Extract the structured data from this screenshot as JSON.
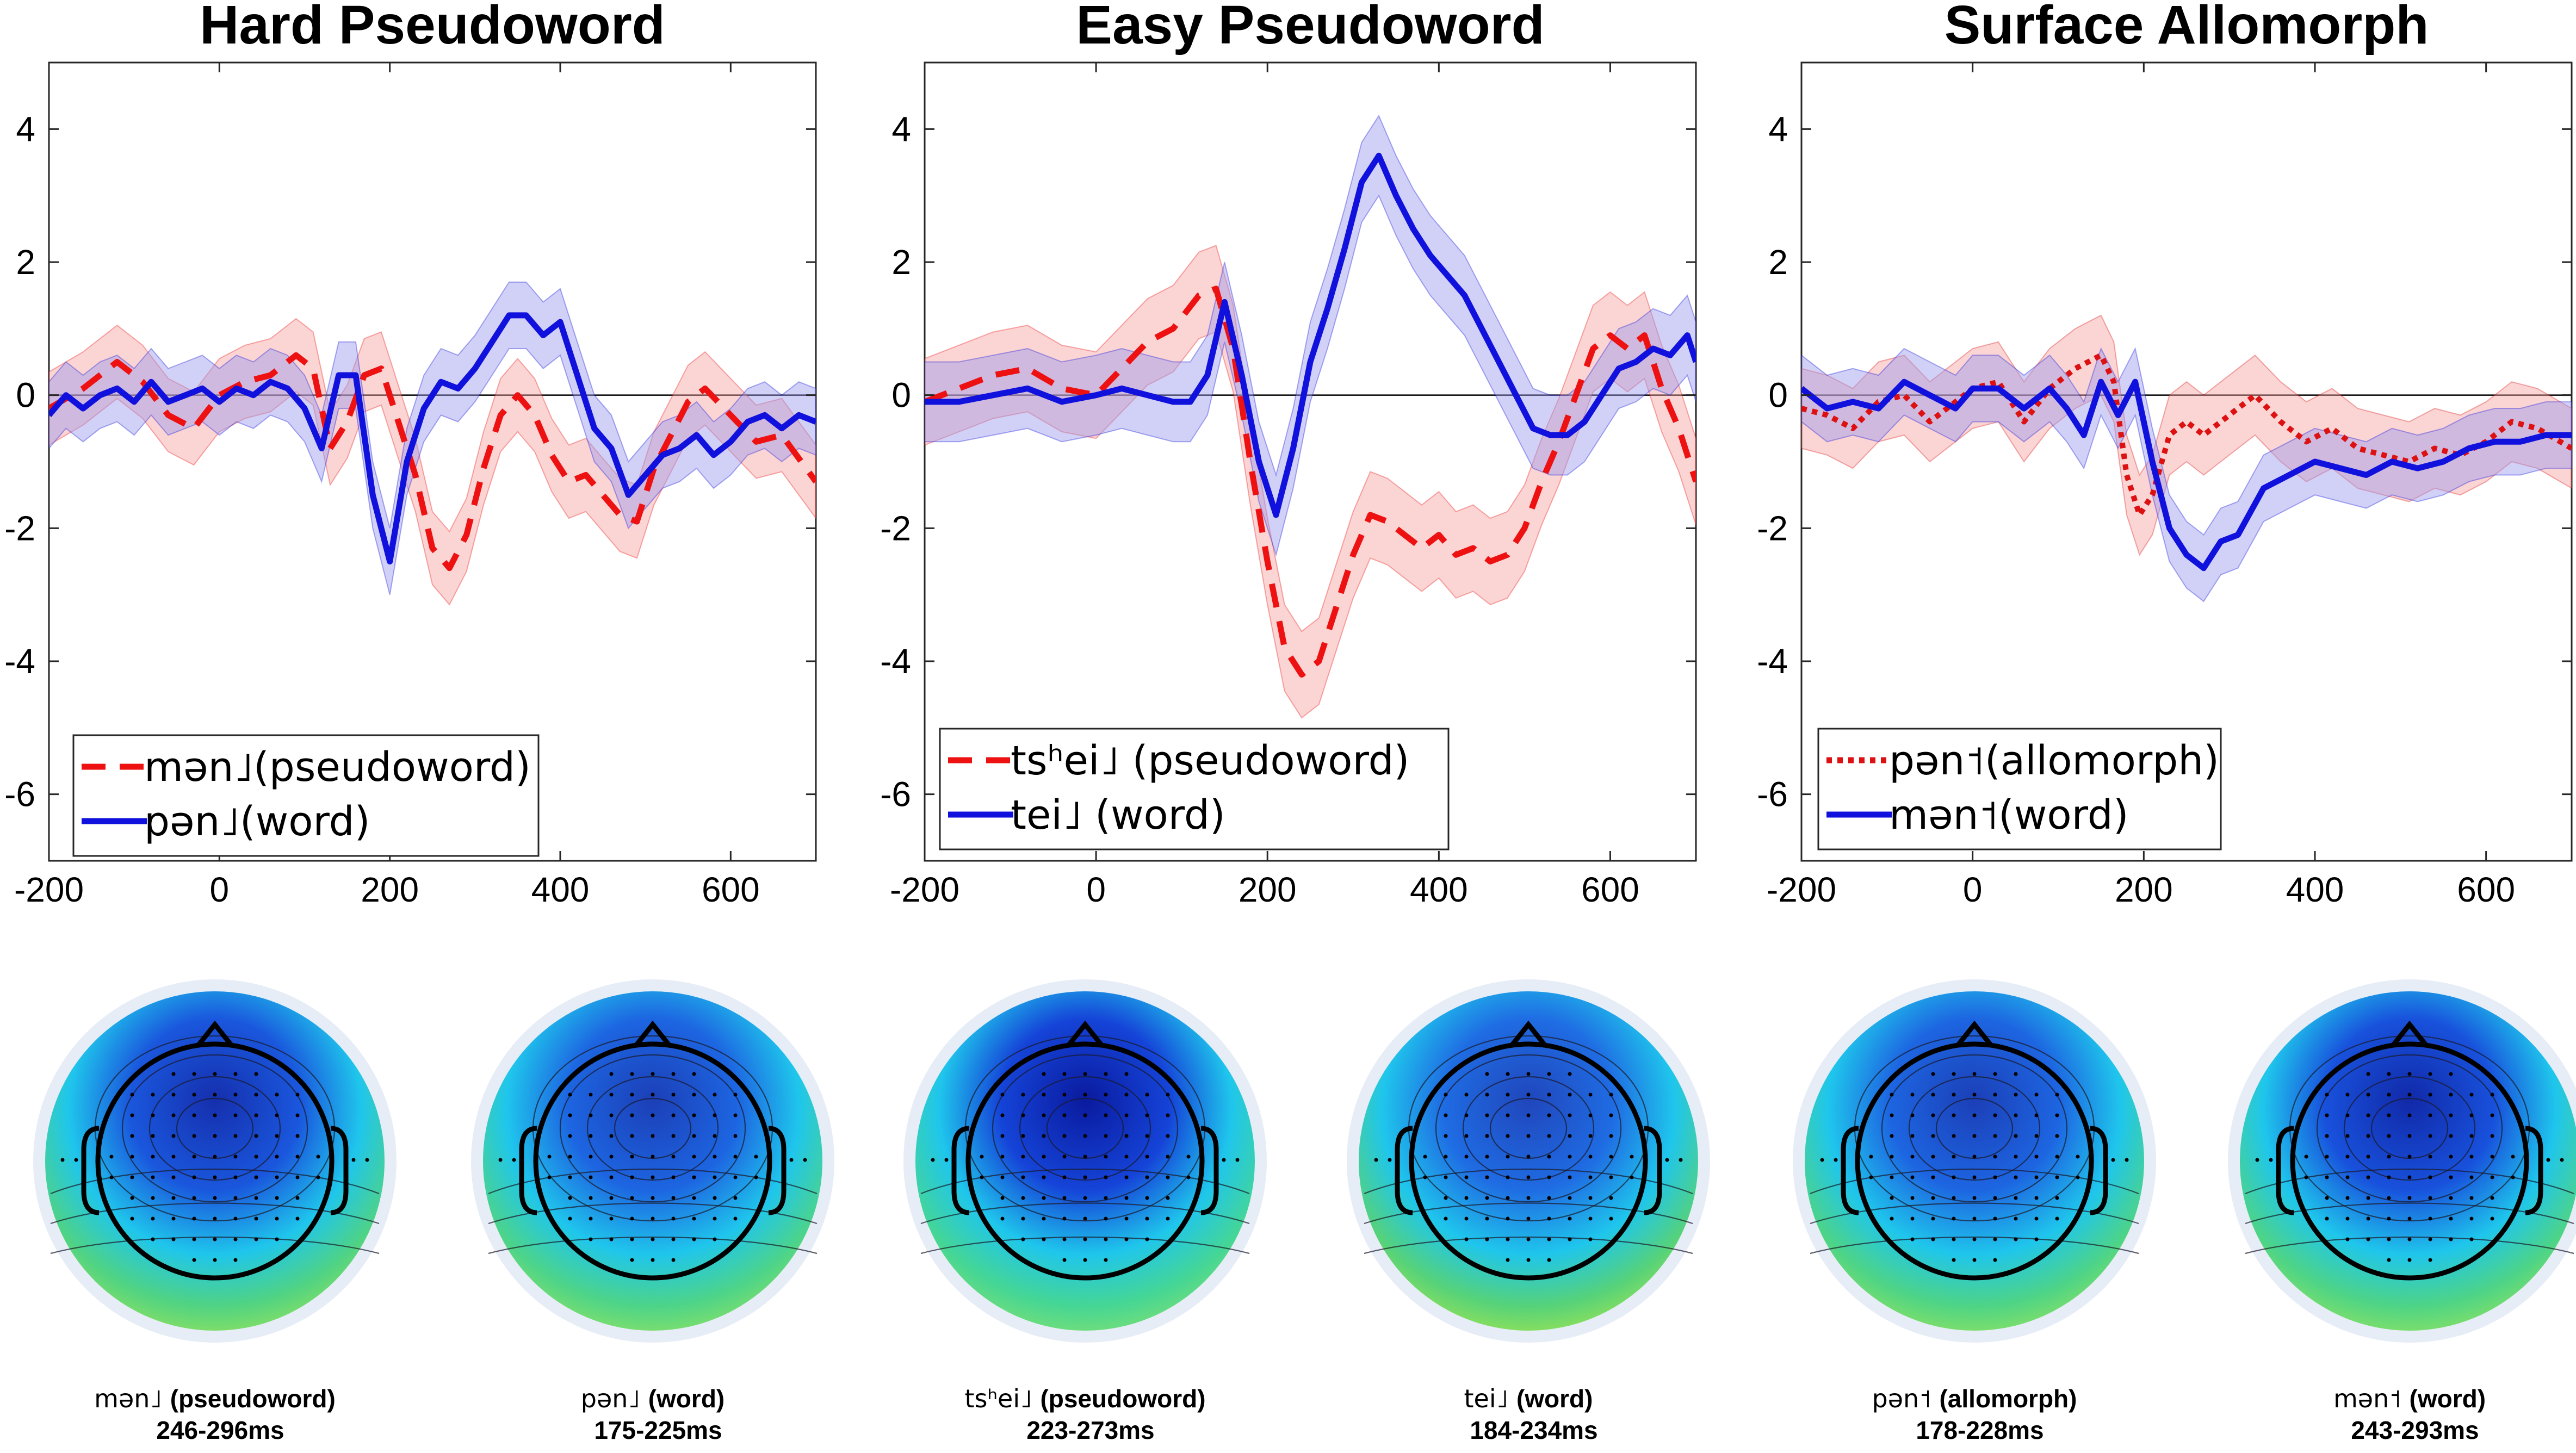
{
  "chart_data": [
    {
      "type": "line",
      "title": "Hard Pseudoword",
      "xlim": [
        -200,
        700
      ],
      "ylim": [
        -7,
        5
      ],
      "xticks": [
        -200,
        0,
        200,
        400,
        600
      ],
      "yticks": [
        -6,
        -4,
        -2,
        0,
        2,
        4
      ],
      "xtick_labels": [
        "-200",
        "0",
        "200",
        "400",
        "600"
      ],
      "ytick_labels": [
        "-6",
        "-4",
        "-2",
        "0",
        "2",
        "4"
      ],
      "legend_position": "bottom-left",
      "series": [
        {
          "name": "mən˩(pseudoword)",
          "color": "#ee1111",
          "style": "dashed",
          "band": 0.55,
          "x": [
            -200,
            -160,
            -120,
            -90,
            -60,
            -30,
            0,
            30,
            60,
            90,
            110,
            130,
            150,
            170,
            190,
            210,
            230,
            250,
            270,
            290,
            310,
            330,
            350,
            370,
            390,
            410,
            430,
            450,
            470,
            490,
            510,
            530,
            550,
            570,
            600,
            630,
            660,
            700
          ],
          "values": [
            -0.2,
            0.1,
            0.5,
            0.2,
            -0.3,
            -0.5,
            0.0,
            0.2,
            0.3,
            0.6,
            0.4,
            -0.8,
            -0.4,
            0.3,
            0.4,
            -0.4,
            -1.2,
            -2.3,
            -2.6,
            -2.1,
            -1.1,
            -0.3,
            0.0,
            -0.3,
            -0.9,
            -1.3,
            -1.2,
            -1.5,
            -1.8,
            -1.9,
            -1.1,
            -0.6,
            -0.1,
            0.1,
            -0.3,
            -0.7,
            -0.6,
            -1.3
          ]
        },
        {
          "name": "pən˩(word)",
          "color": "#1111dd",
          "style": "solid",
          "band": 0.5,
          "x": [
            -200,
            -180,
            -160,
            -140,
            -120,
            -100,
            -80,
            -60,
            -40,
            -20,
            0,
            20,
            40,
            60,
            80,
            100,
            120,
            140,
            160,
            180,
            200,
            220,
            240,
            260,
            280,
            300,
            320,
            340,
            360,
            380,
            400,
            420,
            440,
            460,
            480,
            500,
            520,
            540,
            560,
            580,
            600,
            620,
            640,
            660,
            680,
            700
          ],
          "values": [
            -0.3,
            0.0,
            -0.2,
            0.0,
            0.1,
            -0.1,
            0.2,
            -0.1,
            0.0,
            0.1,
            -0.1,
            0.1,
            0.0,
            0.2,
            0.1,
            -0.2,
            -0.8,
            0.3,
            0.3,
            -1.5,
            -2.5,
            -1.0,
            -0.2,
            0.2,
            0.1,
            0.4,
            0.8,
            1.2,
            1.2,
            0.9,
            1.1,
            0.3,
            -0.5,
            -0.8,
            -1.5,
            -1.2,
            -0.9,
            -0.8,
            -0.6,
            -0.9,
            -0.7,
            -0.4,
            -0.3,
            -0.5,
            -0.3,
            -0.4
          ]
        }
      ]
    },
    {
      "type": "line",
      "title": "Easy Pseudoword",
      "xlim": [
        -200,
        700
      ],
      "ylim": [
        -7,
        5
      ],
      "xticks": [
        -200,
        0,
        200,
        400,
        600
      ],
      "yticks": [
        -6,
        -4,
        -2,
        0,
        2,
        4
      ],
      "xtick_labels": [
        "-200",
        "0",
        "200",
        "400",
        "600"
      ],
      "ytick_labels": [
        "-6",
        "-4",
        "-2",
        "0",
        "2",
        "4"
      ],
      "legend_position": "bottom-left",
      "series": [
        {
          "name": "tsʰei˩ (pseudoword)",
          "color": "#ee1111",
          "style": "dashed",
          "band": 0.65,
          "x": [
            -200,
            -160,
            -120,
            -80,
            -40,
            0,
            30,
            60,
            90,
            120,
            140,
            160,
            180,
            200,
            220,
            240,
            260,
            280,
            300,
            320,
            340,
            360,
            380,
            400,
            420,
            440,
            460,
            480,
            500,
            520,
            540,
            560,
            580,
            600,
            620,
            640,
            660,
            680,
            700
          ],
          "values": [
            -0.1,
            0.1,
            0.3,
            0.4,
            0.1,
            0.0,
            0.4,
            0.8,
            1.0,
            1.5,
            1.6,
            0.7,
            -1.0,
            -2.5,
            -3.8,
            -4.2,
            -4.0,
            -3.2,
            -2.4,
            -1.8,
            -1.9,
            -2.1,
            -2.3,
            -2.1,
            -2.4,
            -2.3,
            -2.5,
            -2.4,
            -2.0,
            -1.3,
            -0.7,
            0.0,
            0.7,
            0.9,
            0.7,
            0.9,
            0.1,
            -0.5,
            -1.3
          ]
        },
        {
          "name": "tei˩      (word)",
          "color": "#1111dd",
          "style": "solid",
          "band": 0.6,
          "x": [
            -200,
            -160,
            -120,
            -80,
            -40,
            0,
            30,
            60,
            90,
            110,
            130,
            150,
            170,
            190,
            210,
            230,
            250,
            270,
            290,
            310,
            330,
            350,
            370,
            390,
            410,
            430,
            450,
            470,
            490,
            510,
            530,
            550,
            570,
            590,
            610,
            630,
            650,
            670,
            690,
            700
          ],
          "values": [
            -0.1,
            -0.1,
            0.0,
            0.1,
            -0.1,
            0.0,
            0.1,
            0.0,
            -0.1,
            -0.1,
            0.3,
            1.4,
            0.3,
            -1.0,
            -1.8,
            -0.8,
            0.5,
            1.3,
            2.2,
            3.2,
            3.6,
            3.0,
            2.5,
            2.1,
            1.8,
            1.5,
            1.0,
            0.5,
            0.0,
            -0.5,
            -0.6,
            -0.6,
            -0.4,
            0.0,
            0.4,
            0.5,
            0.7,
            0.6,
            0.9,
            0.5
          ]
        }
      ]
    },
    {
      "type": "line",
      "title": "Surface Allomorph",
      "xlim": [
        -200,
        700
      ],
      "ylim": [
        -7,
        5
      ],
      "xticks": [
        -200,
        0,
        200,
        400,
        600
      ],
      "yticks": [
        -6,
        -4,
        -2,
        0,
        2,
        4
      ],
      "xtick_labels": [
        "-200",
        "0",
        "200",
        "400",
        "600"
      ],
      "ytick_labels": [
        "-6",
        "-4",
        "-2",
        "0",
        "2",
        "4"
      ],
      "legend_position": "bottom-left",
      "series": [
        {
          "name": "pən˦(allomorph)",
          "color": "#dd1111",
          "style": "dotted",
          "band": 0.6,
          "x": [
            -200,
            -170,
            -140,
            -110,
            -80,
            -50,
            -20,
            0,
            30,
            60,
            90,
            120,
            150,
            165,
            180,
            195,
            210,
            230,
            250,
            270,
            290,
            310,
            330,
            360,
            390,
            420,
            450,
            480,
            510,
            540,
            570,
            600,
            630,
            660,
            700
          ],
          "values": [
            -0.2,
            -0.3,
            -0.5,
            -0.1,
            0.0,
            -0.4,
            -0.1,
            0.1,
            0.2,
            -0.4,
            0.1,
            0.4,
            0.6,
            0.2,
            -1.2,
            -1.8,
            -1.5,
            -0.6,
            -0.4,
            -0.6,
            -0.4,
            -0.2,
            0.0,
            -0.4,
            -0.7,
            -0.5,
            -0.8,
            -0.9,
            -1.0,
            -0.8,
            -0.9,
            -0.7,
            -0.4,
            -0.5,
            -0.8
          ]
        },
        {
          "name": "mən˦(word)",
          "color": "#1111dd",
          "style": "solid",
          "band": 0.5,
          "x": [
            -200,
            -170,
            -140,
            -110,
            -80,
            -50,
            -20,
            0,
            30,
            60,
            90,
            110,
            130,
            150,
            170,
            190,
            210,
            230,
            250,
            270,
            290,
            310,
            340,
            370,
            400,
            430,
            460,
            490,
            520,
            550,
            580,
            610,
            640,
            670,
            700
          ],
          "values": [
            0.1,
            -0.2,
            -0.1,
            -0.2,
            0.2,
            0.0,
            -0.2,
            0.1,
            0.1,
            -0.2,
            0.1,
            -0.2,
            -0.6,
            0.2,
            -0.3,
            0.2,
            -1.0,
            -2.0,
            -2.4,
            -2.6,
            -2.2,
            -2.1,
            -1.4,
            -1.2,
            -1.0,
            -1.1,
            -1.2,
            -1.0,
            -1.1,
            -1.0,
            -0.8,
            -0.7,
            -0.7,
            -0.6,
            -0.6
          ]
        }
      ]
    }
  ],
  "topomaps": [
    {
      "label": "mən˩",
      "condition": "(pseudoword)",
      "time": "246-296ms",
      "peak": 0.78,
      "bottom": 0.6
    },
    {
      "label": "pən˩",
      "condition": "(word)",
      "time": "175-225ms",
      "peak": 0.62,
      "bottom": 0.5
    },
    {
      "label": "tsʰei˩",
      "condition": "(pseudoword)",
      "time": "223-273ms",
      "peak": 1.0,
      "bottom": 0.3
    },
    {
      "label": "tei˩",
      "condition": "(word)",
      "time": "184-234ms",
      "peak": 0.55,
      "bottom": 0.75
    },
    {
      "label": "pən˦",
      "condition": "(allomorph)",
      "time": "178-228ms",
      "peak": 0.62,
      "bottom": 0.55
    },
    {
      "label": "mən˦",
      "condition": "(word)",
      "time": "243-293ms",
      "peak": 0.85,
      "bottom": 0.55
    }
  ],
  "colors": {
    "axis": "#262626",
    "zero_line": "#000000",
    "band_red": "#f6a0a0",
    "band_blue": "#9a9aee"
  }
}
